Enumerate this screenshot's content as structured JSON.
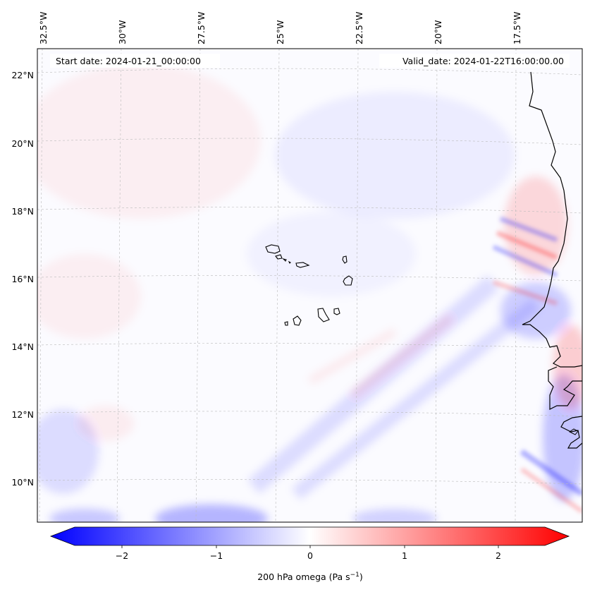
{
  "header": {
    "start_date": "Start date: 2024-01-21_00:00:00",
    "valid_date": "Valid_date: 2024-01-22T16:00:00.00"
  },
  "map": {
    "longitude_labels": [
      "32.5°W",
      "30°W",
      "27.5°W",
      "25°W",
      "22.5°W",
      "20°W",
      "17.5°W"
    ],
    "latitude_labels": [
      "22°N",
      "20°N",
      "18°N",
      "16°N",
      "14°N",
      "12°N",
      "10°N"
    ],
    "field_colors": {
      "negative": "#0000ff",
      "zero": "#ffffff",
      "positive": "#ff0000",
      "coastline": "#000000"
    }
  },
  "colorbar": {
    "tick_labels": [
      "−2",
      "−1",
      "0",
      "1",
      "2"
    ],
    "label": "200 hPa omega (Pa s",
    "label_exponent": "−1",
    "label_close": ")"
  }
}
